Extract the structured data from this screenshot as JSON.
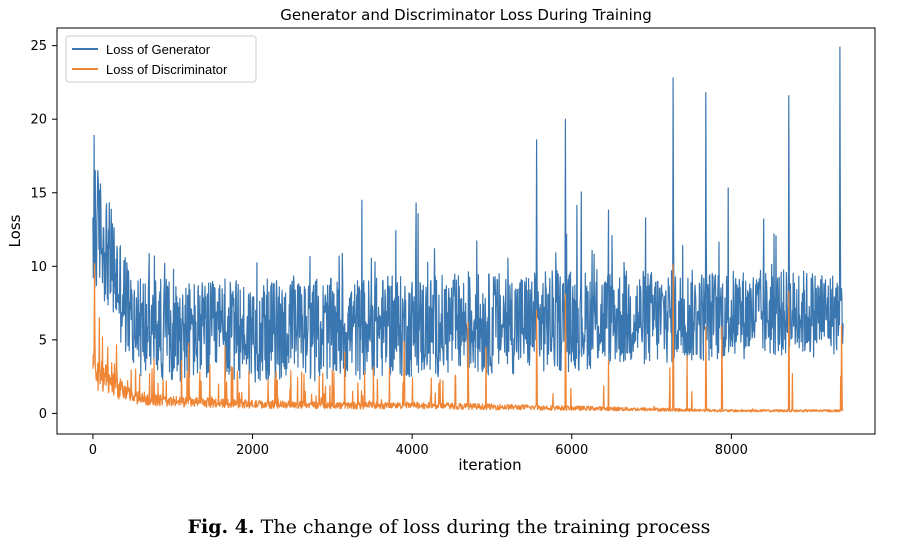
{
  "chart_data": {
    "type": "line",
    "title": "Generator and Discriminator Loss During Training",
    "xlabel": "iteration",
    "ylabel": "Loss",
    "xlim": [
      -450,
      9800
    ],
    "ylim": [
      -1.4,
      26.2
    ],
    "xticks": [
      0,
      2000,
      4000,
      6000,
      8000
    ],
    "yticks": [
      0,
      5,
      10,
      15,
      20,
      25
    ],
    "grid": false,
    "legend_position": "top-left",
    "n_iterations": 9400,
    "series": [
      {
        "name": "Loss of Generator",
        "color": "#3a76af",
        "x": [
          0,
          50,
          500,
          1000,
          1500,
          2000,
          2500,
          3000,
          3500,
          4000,
          4500,
          5000,
          5500,
          6000,
          6500,
          7000,
          7500,
          8000,
          8500,
          9000,
          9400
        ],
        "values": [
          8.0,
          13.0,
          6.0,
          5.7,
          5.5,
          5.6,
          5.7,
          5.7,
          5.8,
          5.9,
          6.0,
          6.1,
          6.2,
          6.3,
          6.5,
          6.5,
          6.6,
          6.7,
          6.8,
          6.8,
          6.8
        ],
        "spread": [
          6,
          4,
          3.5,
          3.5,
          3.5,
          3.5,
          3.5,
          3.5,
          3.5,
          3.5,
          3.5,
          3.5,
          3.5,
          3.5,
          3.3,
          3.3,
          3.2,
          3.1,
          3.0,
          3.0,
          2.8
        ],
        "spikes": [
          {
            "x": 15,
            "y": 18.9
          },
          {
            "x": 30,
            "y": 16.5
          },
          {
            "x": 5560,
            "y": 18.6
          },
          {
            "x": 5920,
            "y": 20.0
          },
          {
            "x": 7270,
            "y": 22.8
          },
          {
            "x": 7680,
            "y": 21.8
          },
          {
            "x": 8720,
            "y": 21.6
          },
          {
            "x": 9360,
            "y": 24.9
          }
        ]
      },
      {
        "name": "Loss of Discriminator",
        "color": "#ef8636",
        "x": [
          0,
          50,
          500,
          1000,
          2000,
          3000,
          4000,
          5000,
          6000,
          7000,
          8000,
          9000,
          9400
        ],
        "values": [
          2.0,
          1.5,
          0.6,
          0.45,
          0.35,
          0.3,
          0.3,
          0.25,
          0.2,
          0.15,
          0.1,
          0.1,
          0.1
        ],
        "spikes": [
          {
            "x": 20,
            "y": 10.2
          },
          {
            "x": 1200,
            "y": 4.8
          },
          {
            "x": 3900,
            "y": 4.9
          },
          {
            "x": 4700,
            "y": 6.2
          },
          {
            "x": 5560,
            "y": 7.0
          },
          {
            "x": 5920,
            "y": 8.1
          },
          {
            "x": 7270,
            "y": 10.1
          },
          {
            "x": 7680,
            "y": 5.9
          },
          {
            "x": 7880,
            "y": 5.9
          },
          {
            "x": 8720,
            "y": 8.3
          },
          {
            "x": 9380,
            "y": 6.0
          }
        ]
      }
    ]
  },
  "caption": {
    "label": "Fig. 4.",
    "text": "The change of loss during the training process"
  }
}
